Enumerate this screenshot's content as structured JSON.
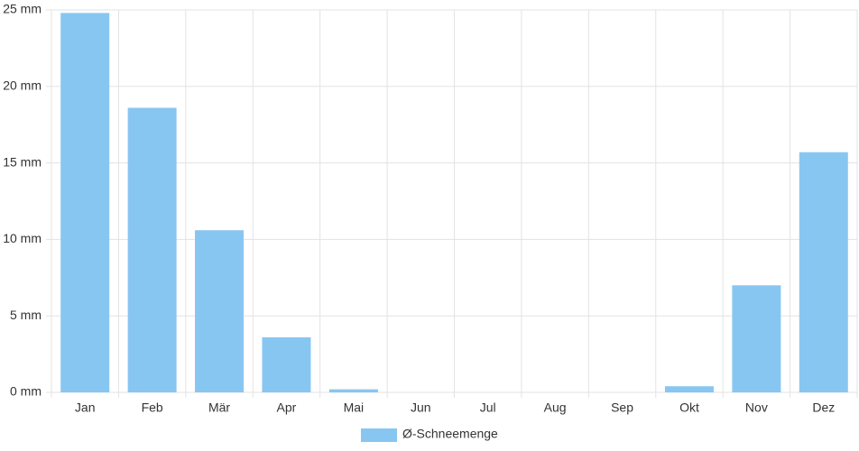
{
  "chart_data": {
    "type": "bar",
    "categories": [
      "Jan",
      "Feb",
      "Mär",
      "Apr",
      "Mai",
      "Jun",
      "Jul",
      "Aug",
      "Sep",
      "Okt",
      "Nov",
      "Dez"
    ],
    "series": [
      {
        "name": "Ø-Schneemenge",
        "color": "#88c6f2",
        "values": [
          24.8,
          18.6,
          10.6,
          3.6,
          0.2,
          0,
          0,
          0,
          0,
          0.4,
          7,
          15.7
        ]
      }
    ],
    "ylim": [
      0,
      25
    ],
    "yticks": [
      {
        "value": 0,
        "label": "0 mm"
      },
      {
        "value": 5,
        "label": "5 mm"
      },
      {
        "value": 10,
        "label": "10 mm"
      },
      {
        "value": 15,
        "label": "15 mm"
      },
      {
        "value": 20,
        "label": "20 mm"
      },
      {
        "value": 25,
        "label": "25 mm"
      }
    ],
    "grid": true,
    "legend": "bottom"
  }
}
